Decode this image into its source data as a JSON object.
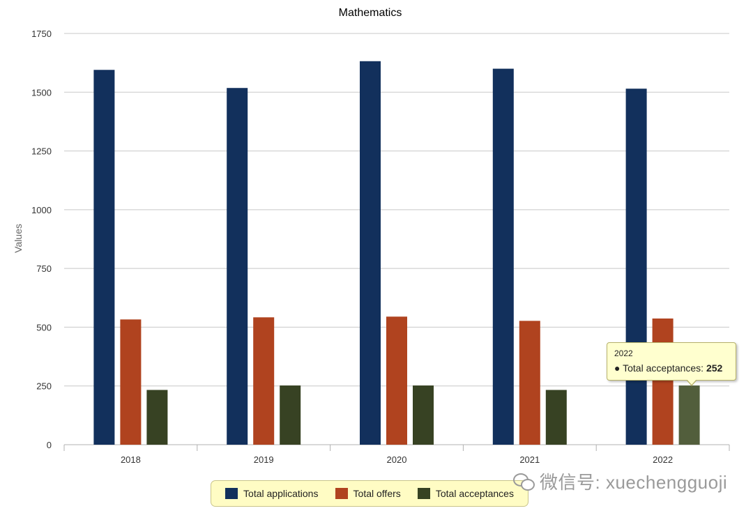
{
  "chart_data": {
    "type": "bar",
    "title": "Mathematics",
    "ylabel": "Values",
    "xlabel": "",
    "ylim": [
      0,
      1750
    ],
    "yticks": [
      0,
      250,
      500,
      750,
      1000,
      1250,
      1500,
      1750
    ],
    "grid": true,
    "legend_position": "bottom-center",
    "categories": [
      "2018",
      "2019",
      "2020",
      "2021",
      "2022"
    ],
    "series": [
      {
        "name": "Total applications",
        "color": "#12305c",
        "values": [
          1595,
          1518,
          1632,
          1600,
          1515
        ]
      },
      {
        "name": "Total offers",
        "color": "#b0431f",
        "values": [
          533,
          542,
          545,
          527,
          537
        ]
      },
      {
        "name": "Total acceptances",
        "color": "#374223",
        "values": [
          233,
          252,
          252,
          233,
          252
        ]
      }
    ],
    "highlight": {
      "series_index": 2,
      "category_index": 4,
      "color": "#525e3c"
    }
  },
  "tooltip": {
    "title": "2022",
    "bullet": "●",
    "label": "Total acceptances:",
    "value": "252"
  },
  "watermark": {
    "text": "微信号: xuechengguoji",
    "icon": "wechat-icon"
  }
}
